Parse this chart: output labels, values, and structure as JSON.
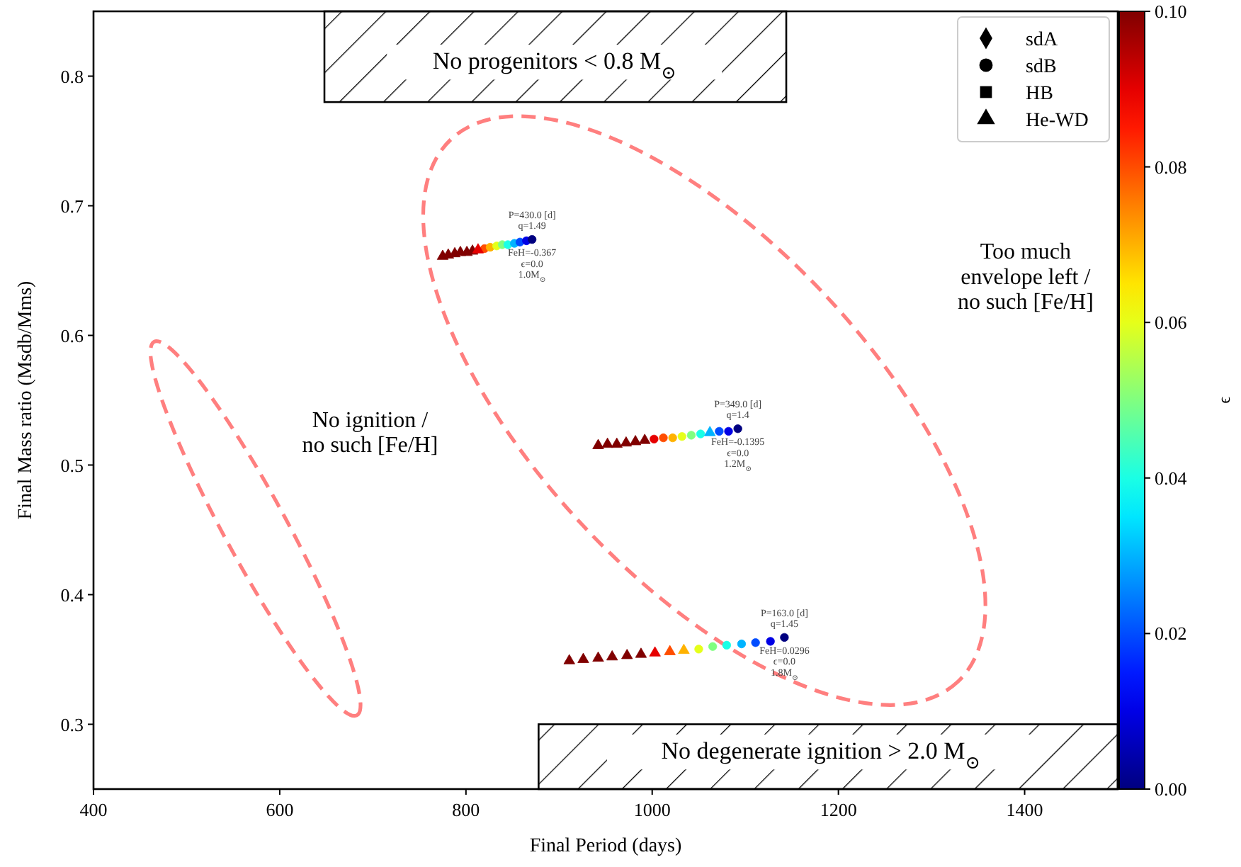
{
  "chart_data": {
    "type": "scatter",
    "xlabel": "Final Period (days)",
    "ylabel": "Final Mass ratio (Msdb/Mms)",
    "clabel": "ϵ",
    "xlim": [
      400,
      1500
    ],
    "xticks": [
      400,
      600,
      800,
      1000,
      1200,
      1400
    ],
    "ylim": [
      0.25,
      0.85
    ],
    "yticks": [
      0.3,
      0.4,
      0.5,
      0.6,
      0.7,
      0.8
    ],
    "clim": [
      0,
      0.1
    ],
    "cticks": [
      {
        "value": 0,
        "label": "0.00"
      },
      {
        "value": 0.02,
        "label": "0.02"
      },
      {
        "value": 0.04,
        "label": "0.04"
      },
      {
        "value": 0.06,
        "label": "0.06"
      },
      {
        "value": 0.08,
        "label": "0.08"
      },
      {
        "value": 0.1,
        "label": "0.10"
      }
    ],
    "legend": "top right",
    "grid": false,
    "series": [
      {
        "name": "sdA",
        "marker": "diamond"
      },
      {
        "name": "sdB",
        "marker": "circle",
        "x": [
          820,
          826,
          833,
          839,
          845,
          852,
          858,
          865,
          871,
          1002,
          1012,
          1022,
          1032,
          1042,
          1052,
          1072,
          1082,
          1092,
          1050,
          1065,
          1080,
          1096,
          1111,
          1127,
          1142
        ],
        "values": [
          0.667,
          0.668,
          0.669,
          0.67,
          0.67,
          0.671,
          0.672,
          0.673,
          0.674,
          0.52,
          0.521,
          0.521,
          0.522,
          0.523,
          0.524,
          0.526,
          0.526,
          0.528,
          0.358,
          0.36,
          0.361,
          0.362,
          0.363,
          0.364,
          0.367
        ],
        "cvalues": [
          0.08,
          0.07,
          0.06,
          0.05,
          0.04,
          0.03,
          0.02,
          0.01,
          0,
          0.09,
          0.08,
          0.07,
          0.06,
          0.05,
          0.04,
          0.02,
          0.01,
          0,
          0.06,
          0.05,
          0.04,
          0.03,
          0.02,
          0.01,
          0
        ],
        "colors": [
          "#ff4d00",
          "#ffb300",
          "#e6ff1a",
          "#80ff80",
          "#1affe6",
          "#00b3ff",
          "#004dff",
          "#0000e6",
          "#000080",
          "#e60000",
          "#ff4d00",
          "#ffb300",
          "#e6ff1a",
          "#80ff80",
          "#1affe6",
          "#004dff",
          "#0000e6",
          "#000080",
          "#e6ff1a",
          "#80ff80",
          "#1affe6",
          "#00b3ff",
          "#004dff",
          "#0000e6",
          "#000080"
        ]
      },
      {
        "name": "HB",
        "marker": "square"
      },
      {
        "name": "He-WD",
        "marker": "triangle",
        "x": [
          775,
          781,
          788,
          794,
          801,
          807,
          813,
          942,
          952,
          962,
          972,
          982,
          992,
          1062,
          911,
          926,
          942,
          957,
          973,
          988,
          1003,
          1019,
          1034
        ],
        "values": [
          0.661,
          0.662,
          0.663,
          0.664,
          0.664,
          0.665,
          0.666,
          0.515,
          0.516,
          0.516,
          0.517,
          0.518,
          0.519,
          0.525,
          0.349,
          0.35,
          0.351,
          0.352,
          0.353,
          0.354,
          0.355,
          0.356,
          0.357
        ],
        "cvalues": [
          0.1,
          0.1,
          0.1,
          0.1,
          0.1,
          0.1,
          0.09,
          0.1,
          0.1,
          0.1,
          0.1,
          0.1,
          0.1,
          0.03,
          0.1,
          0.1,
          0.1,
          0.1,
          0.1,
          0.1,
          0.09,
          0.08,
          0.07
        ],
        "colors": [
          "#800000",
          "#800000",
          "#800000",
          "#800000",
          "#800000",
          "#800000",
          "#e60000",
          "#800000",
          "#800000",
          "#800000",
          "#800000",
          "#800000",
          "#800000",
          "#00b3ff",
          "#800000",
          "#800000",
          "#800000",
          "#800000",
          "#800000",
          "#800000",
          "#e60000",
          "#ff4d00",
          "#ffb300"
        ]
      }
    ],
    "annotations": [
      "No progenitors < 0.8 M$_{⊙}$",
      "No degenerate ignition > 2.0 M$_{⊙}$",
      "No ignition /\nno such [Fe/H]",
      "Too much\nenvelope left /\nno such [Fe/H]",
      {
        "text": "P=430.0 [d]\nq=1.49",
        "x": 871,
        "y": 0.674
      },
      {
        "text": "FeH=-0.367\nϵ=0.0\n1.0M$_{⊙}$",
        "x": 871,
        "y": 0.674
      },
      {
        "text": "P=349.0 [d]\nq=1.4",
        "x": 1092,
        "y": 0.528
      },
      {
        "text": "FeH=-0.1395\nϵ=0.0\n1.2M$_{⊙}$",
        "x": 1092,
        "y": 0.528
      },
      {
        "text": "P=163.0 [d]\nq=1.45",
        "x": 1142,
        "y": 0.367
      },
      {
        "text": "FeH=0.0296\nϵ=0.0\n1.8M$_{⊙}$",
        "x": 1142,
        "y": 0.367
      }
    ]
  }
}
